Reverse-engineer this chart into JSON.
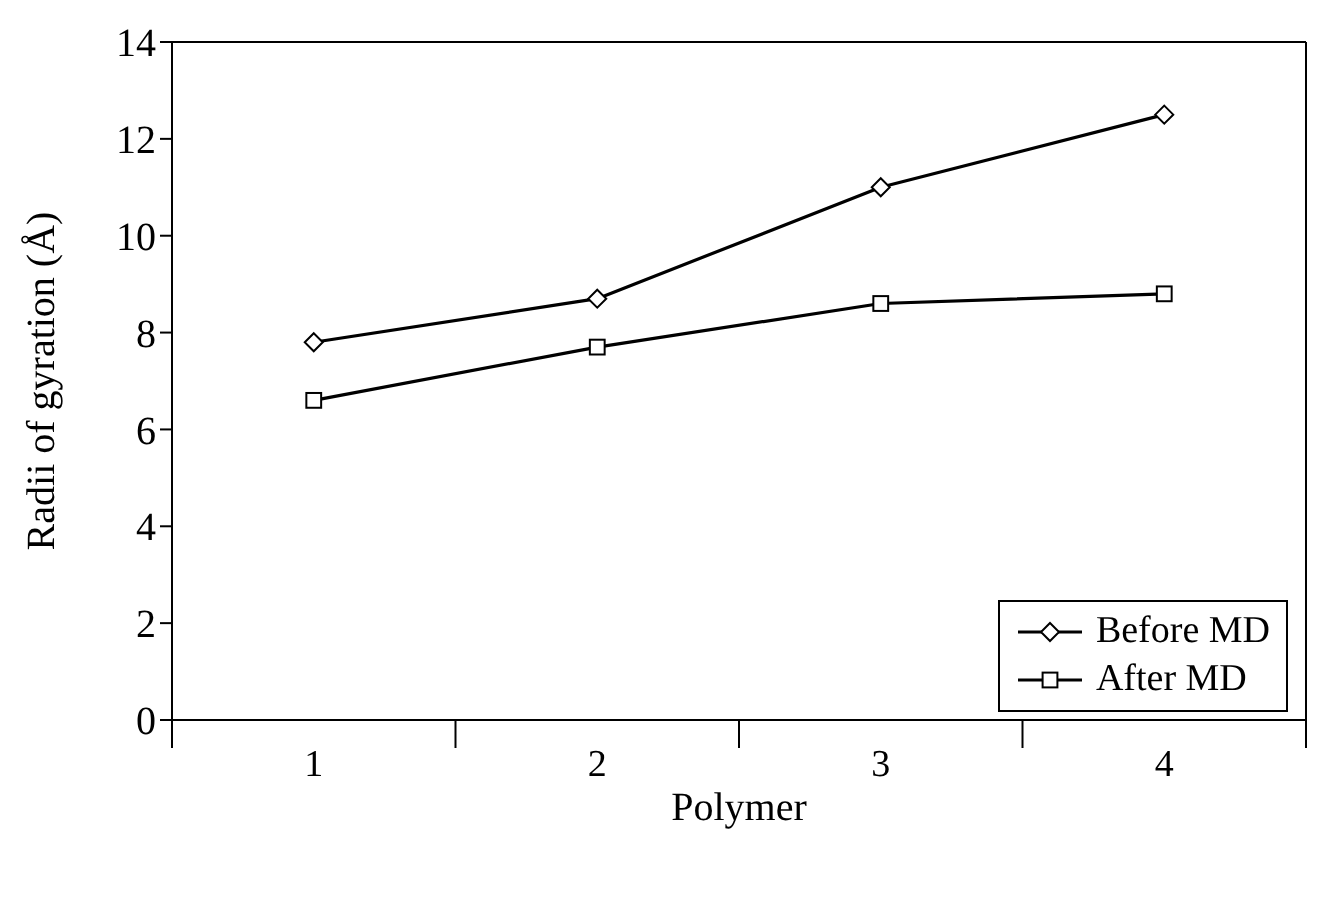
{
  "chart_data": {
    "type": "line",
    "xlabel": "Polymer",
    "ylabel": "Radii of gyration (Å)",
    "categories": [
      "1",
      "2",
      "3",
      "4"
    ],
    "series": [
      {
        "name": "Before MD",
        "color": "#000000",
        "marker": "diamond",
        "values": [
          7.8,
          8.7,
          11.0,
          12.5
        ]
      },
      {
        "name": "After MD",
        "color": "#000000",
        "marker": "square",
        "values": [
          6.6,
          7.7,
          8.6,
          8.8
        ]
      }
    ],
    "ylim": [
      0,
      14
    ],
    "yticks": [
      0,
      2,
      4,
      6,
      8,
      10,
      12,
      14
    ],
    "legend": "bottom right",
    "line_style": "solid"
  }
}
